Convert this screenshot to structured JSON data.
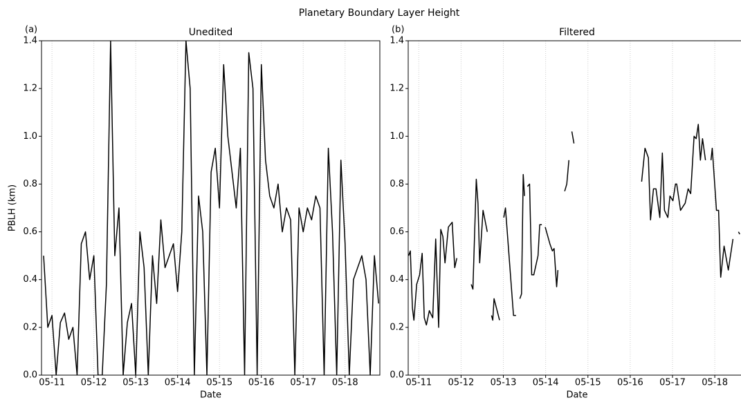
{
  "title": "Planetary Boundary Layer Height",
  "chart_data": [
    {
      "type": "line",
      "panel_label": "(a)",
      "title": "Unedited",
      "xlabel": "Date",
      "ylabel": "PBLH (km)",
      "color": "#000000",
      "xlim": [
        10.75,
        18.83
      ],
      "ylim": [
        0,
        1.4
      ],
      "xticks": [
        {
          "value": 11,
          "label": "05-11"
        },
        {
          "value": 12,
          "label": "05-12"
        },
        {
          "value": 13,
          "label": "05-13"
        },
        {
          "value": 14,
          "label": "05-14"
        },
        {
          "value": 15,
          "label": "05-15"
        },
        {
          "value": 16,
          "label": "05-16"
        },
        {
          "value": 17,
          "label": "05-17"
        },
        {
          "value": 18,
          "label": "05-18"
        }
      ],
      "yticks": [
        {
          "value": 0,
          "label": "0.0"
        },
        0.2,
        0.4,
        0.6,
        0.8,
        {
          "value": 1,
          "label": "1.0"
        },
        1.2,
        1.4
      ],
      "grid": "x",
      "x": [
        10.8,
        10.9,
        11.0,
        11.1,
        11.2,
        11.3,
        11.4,
        11.5,
        11.6,
        11.7,
        11.8,
        11.9,
        12.0,
        12.1,
        12.2,
        12.3,
        12.4,
        12.5,
        12.6,
        12.7,
        12.8,
        12.9,
        13.0,
        13.1,
        13.2,
        13.3,
        13.4,
        13.5,
        13.6,
        13.7,
        13.8,
        13.9,
        14.0,
        14.1,
        14.2,
        14.3,
        14.4,
        14.5,
        14.6,
        14.7,
        14.8,
        14.9,
        15.0,
        15.1,
        15.2,
        15.3,
        15.4,
        15.5,
        15.6,
        15.7,
        15.8,
        15.9,
        16.0,
        16.1,
        16.2,
        16.3,
        16.4,
        16.5,
        16.6,
        16.7,
        16.8,
        16.9,
        17.0,
        17.1,
        17.2,
        17.3,
        17.4,
        17.5,
        17.6,
        17.7,
        17.8,
        17.9,
        18.0,
        18.1,
        18.2,
        18.3,
        18.4,
        18.5,
        18.6,
        18.7,
        18.8
      ],
      "values": [
        0.5,
        0.2,
        0.25,
        0,
        0.22,
        0.26,
        0.15,
        0.2,
        0,
        0.55,
        0.6,
        0.4,
        0.5,
        0,
        0,
        0.38,
        1.4,
        0.5,
        0.7,
        0,
        0.22,
        0.3,
        0,
        0.6,
        0.45,
        0,
        0.5,
        0.3,
        0.65,
        0.45,
        0.5,
        0.55,
        0.35,
        0.6,
        1.4,
        1.2,
        0,
        0.75,
        0.6,
        0,
        0.85,
        0.95,
        0.7,
        1.3,
        1.0,
        0.85,
        0.7,
        0.95,
        0,
        1.35,
        1.2,
        0,
        1.3,
        0.9,
        0.75,
        0.7,
        0.8,
        0.6,
        0.7,
        0.65,
        0,
        0.7,
        0.6,
        0.7,
        0.65,
        0.75,
        0.7,
        0,
        0.95,
        0.6,
        0,
        0.9,
        0.55,
        0,
        0.4,
        0.45,
        0.5,
        0.4,
        0,
        0.5,
        0.3
      ]
    },
    {
      "type": "line",
      "panel_label": "(b)",
      "title": "Filtered",
      "xlabel": "Date",
      "color": "#000000",
      "xlim": [
        10.75,
        18.62
      ],
      "ylim": [
        0,
        1.4
      ],
      "xticks": [
        {
          "value": 11,
          "label": "05-11"
        },
        {
          "value": 12,
          "label": "05-12"
        },
        {
          "value": 13,
          "label": "05-13"
        },
        {
          "value": 14,
          "label": "05-14"
        },
        {
          "value": 15,
          "label": "05-15"
        },
        {
          "value": 16,
          "label": "05-16"
        },
        {
          "value": 17,
          "label": "05-17"
        },
        {
          "value": 18,
          "label": "05-18"
        }
      ],
      "yticks": [
        {
          "value": 0,
          "label": "0.0"
        },
        0.2,
        0.4,
        0.6,
        0.8,
        {
          "value": 1,
          "label": "1.0"
        },
        1.2,
        1.4
      ],
      "grid": "x",
      "x": [
        10.76,
        10.8,
        10.85,
        10.885,
        10.95,
        11.02,
        11.08,
        11.13,
        11.18,
        11.25,
        11.33,
        11.4,
        11.47,
        11.52,
        11.57,
        11.62,
        11.7,
        11.79,
        11.85,
        11.9,
        12.05,
        12.24,
        12.28,
        12.36,
        12.4,
        12.44,
        12.52,
        12.62,
        12.67,
        12.72,
        12.75,
        12.78,
        12.91,
        12.95,
        13.01,
        13.05,
        13.24,
        13.3,
        13.35,
        13.39,
        13.43,
        13.47,
        13.5,
        13.54,
        13.57,
        13.62,
        13.67,
        13.72,
        13.82,
        13.86,
        13.91,
        13.95,
        13.99,
        14.1,
        14.16,
        14.2,
        14.26,
        14.29,
        14.37,
        14.45,
        14.5,
        14.55,
        14.58,
        14.62,
        14.67,
        15.5,
        16.27,
        16.35,
        16.43,
        16.48,
        16.55,
        16.61,
        16.7,
        16.76,
        16.81,
        16.89,
        16.94,
        17.01,
        17.07,
        17.1,
        17.19,
        17.3,
        17.37,
        17.43,
        17.51,
        17.56,
        17.61,
        17.66,
        17.71,
        17.78,
        17.85,
        17.91,
        17.94,
        18.04,
        18.09,
        18.14,
        18.22,
        18.32,
        18.43,
        18.5,
        18.56,
        18.59
      ],
      "values": [
        0.5,
        0.52,
        0.28,
        0.23,
        0.38,
        0.42,
        0.51,
        0.24,
        0.21,
        0.27,
        0.24,
        0.57,
        0.2,
        0.61,
        0.58,
        0.47,
        0.62,
        0.64,
        0.45,
        0.49,
        null,
        0.38,
        0.36,
        0.82,
        0.72,
        0.47,
        0.69,
        0.6,
        null,
        0.25,
        0.23,
        0.32,
        0.23,
        null,
        0.66,
        0.7,
        0.25,
        0.25,
        null,
        0.32,
        0.34,
        0.84,
        0.75,
        null,
        0.79,
        0.8,
        0.42,
        0.42,
        0.5,
        0.63,
        0.63,
        null,
        0.62,
        0.55,
        0.52,
        0.53,
        0.37,
        0.44,
        null,
        0.77,
        0.8,
        0.9,
        null,
        1.02,
        0.97,
        null,
        0.81,
        0.95,
        0.91,
        0.65,
        0.78,
        0.78,
        0.66,
        0.93,
        0.69,
        0.66,
        0.75,
        0.73,
        0.8,
        0.8,
        0.69,
        0.72,
        0.78,
        0.76,
        1.0,
        0.99,
        1.05,
        0.9,
        0.99,
        0.9,
        null,
        0.9,
        0.95,
        0.69,
        0.69,
        0.41,
        0.54,
        0.44,
        0.57,
        null,
        0.6,
        0.59
      ]
    }
  ]
}
